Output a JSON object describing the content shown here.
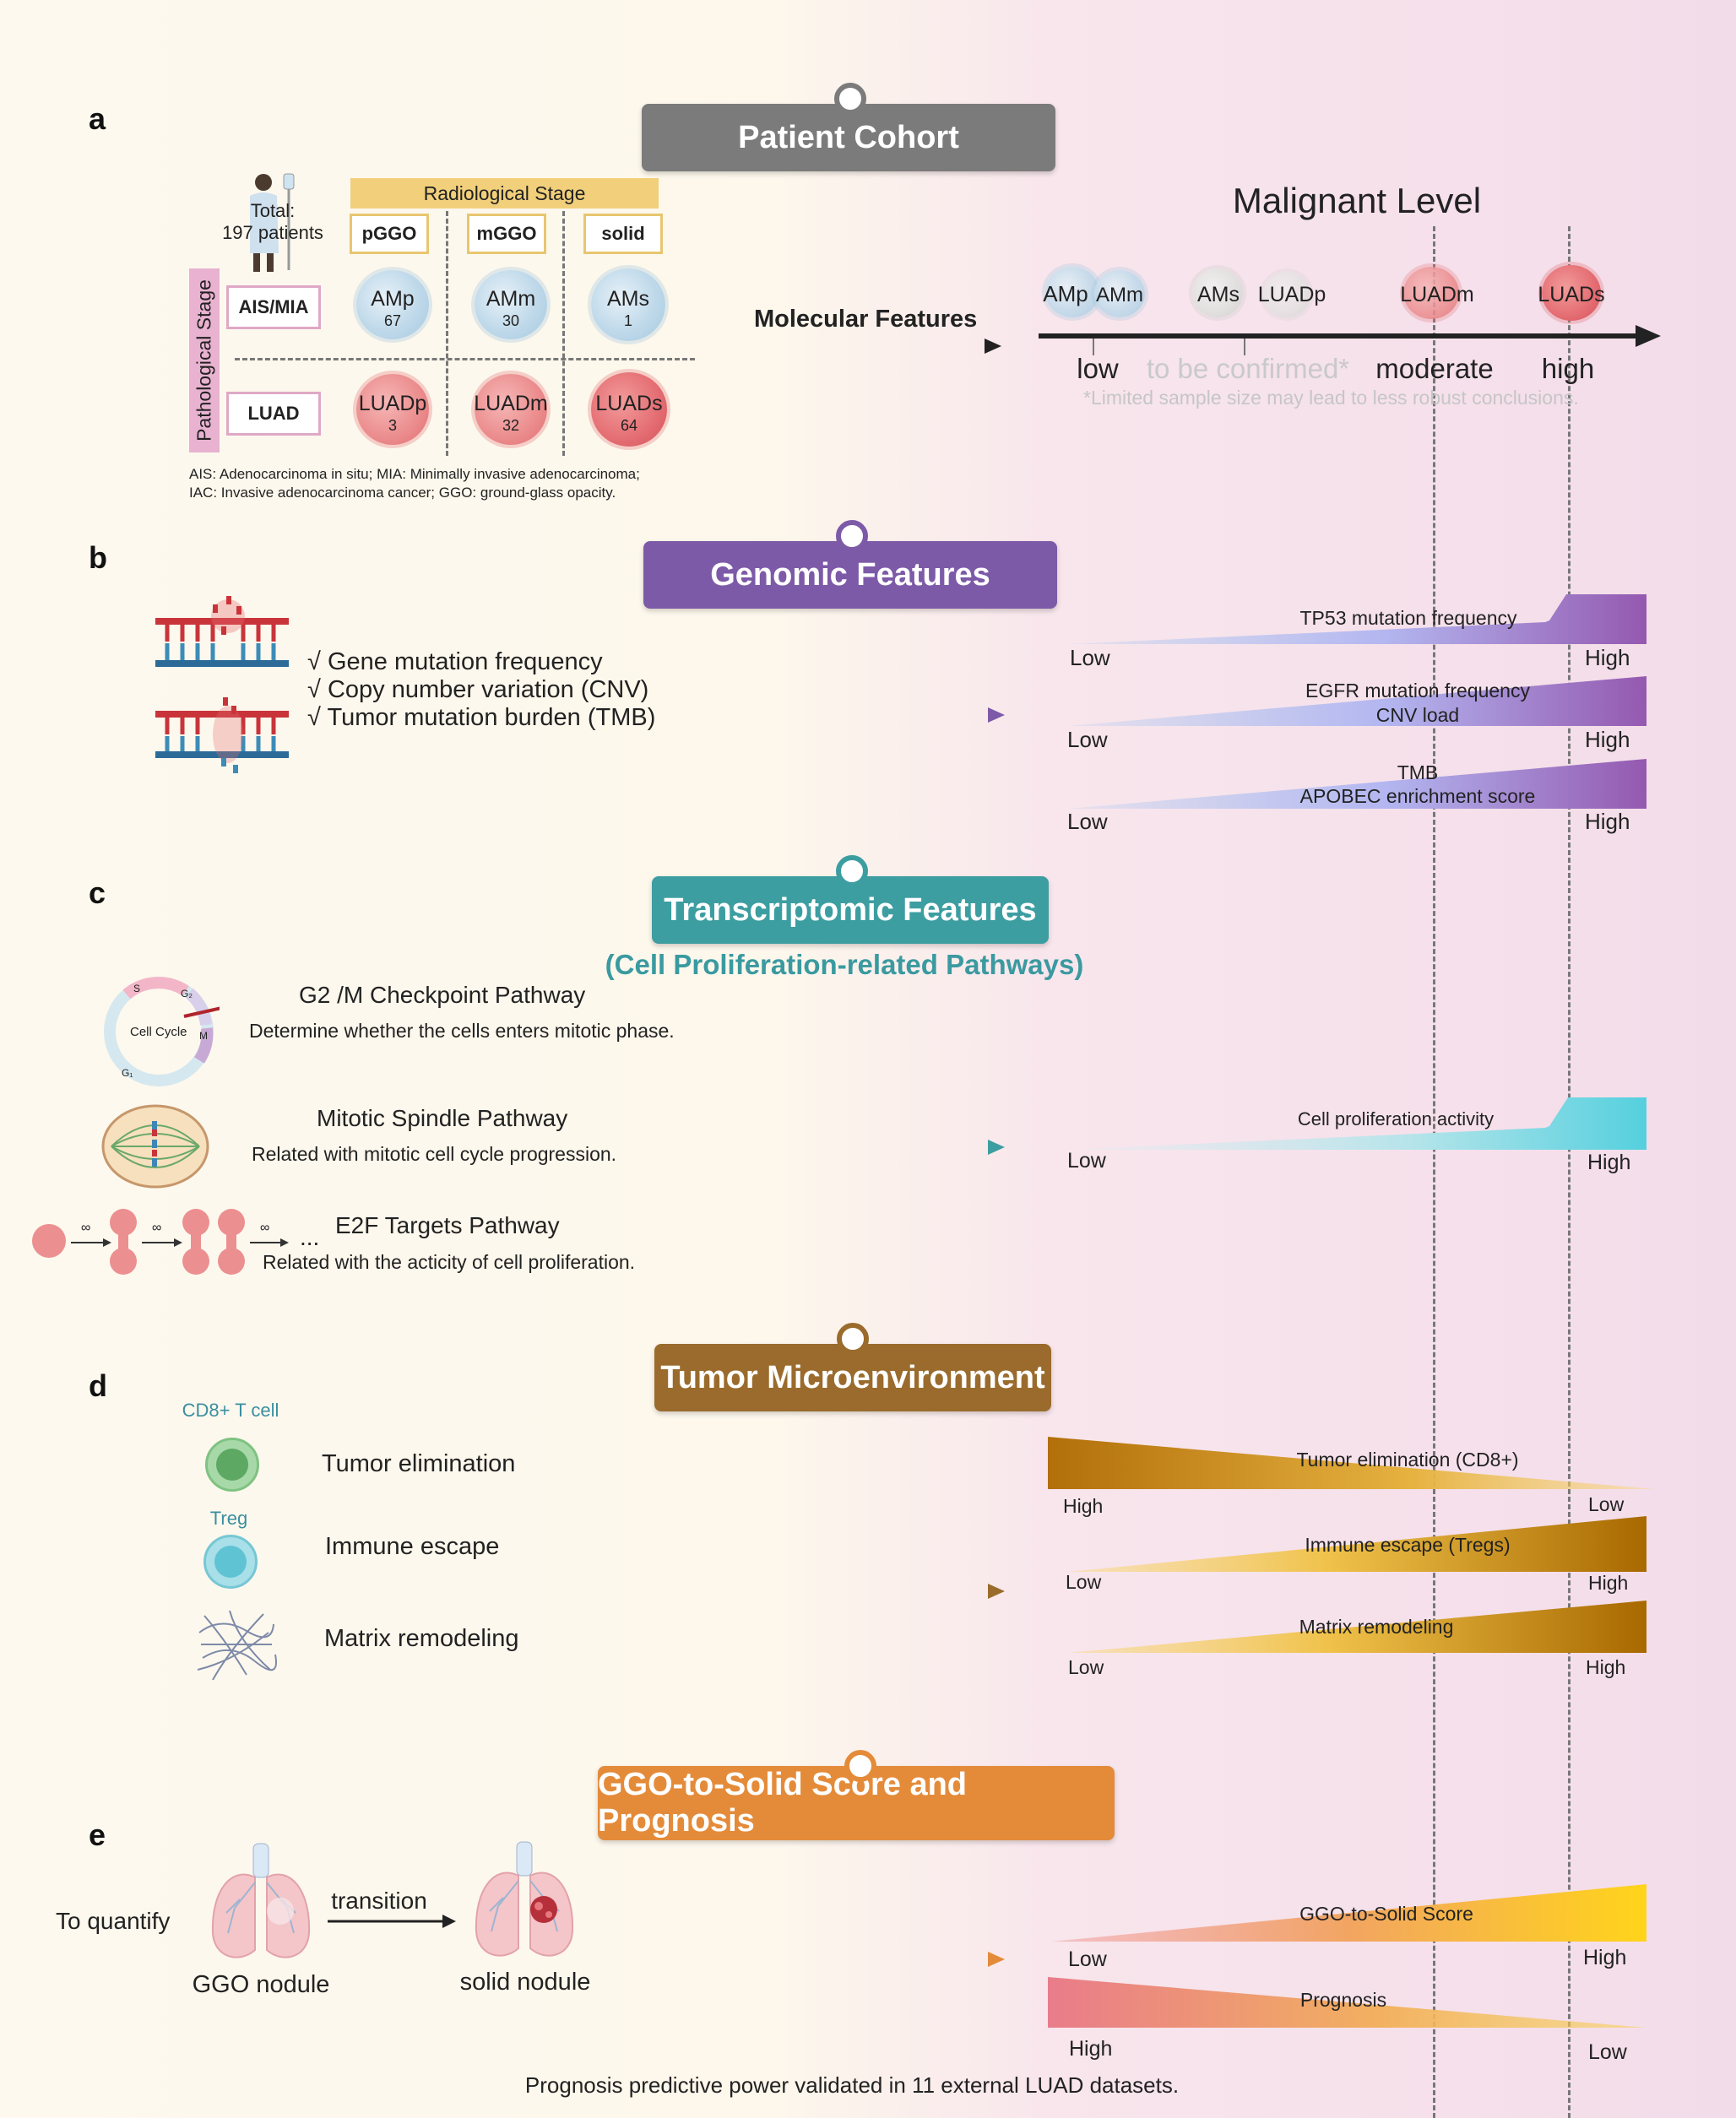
{
  "panel_labels": {
    "a": "a",
    "b": "b",
    "c": "c",
    "d": "d",
    "e": "e"
  },
  "panel_a": {
    "banner": "Patient Cohort",
    "total_label": "Total:",
    "total_value": "197  patients",
    "radiological_stage": "Radiological Stage",
    "columns": [
      "pGGO",
      "mGGO",
      "solid"
    ],
    "pathological_stage": "Pathological Stage",
    "rows": [
      "AIS/MIA",
      "LUAD"
    ],
    "groups": [
      {
        "name": "AMp",
        "n": "67"
      },
      {
        "name": "AMm",
        "n": "30"
      },
      {
        "name": "AMs",
        "n": "1"
      },
      {
        "name": "LUADp",
        "n": "3"
      },
      {
        "name": "LUADm",
        "n": "32"
      },
      {
        "name": "LUADs",
        "n": "64"
      }
    ],
    "footnote_1": "AIS: Adenocarcinoma in situ; MIA: Minimally invasive adenocarcinoma;",
    "footnote_2": "IAC: Invasive adenocarcinoma cancer; GGO: ground-glass opacity.",
    "arrow_label": "Molecular Features",
    "scale_title": "Malignant Level",
    "scale_groups": [
      "AMp",
      "AMm",
      "AMs",
      "LUADp",
      "LUADm",
      "LUADs"
    ],
    "scale_levels": [
      "low",
      "to be confirmed*",
      "moderate",
      "high"
    ],
    "scale_note": "*Limited sample size may lead to less robust conclusions."
  },
  "panel_b": {
    "banner": "Genomic Features",
    "items": [
      "√ Gene mutation frequency",
      "√ Copy number variation (CNV)",
      "√ Tumor mutation burden (TMB)"
    ],
    "bars": [
      {
        "label": "TP53 mutation frequency",
        "left": "Low",
        "right": "High"
      },
      {
        "label": "EGFR mutation frequency",
        "label2": "CNV load",
        "left": "Low",
        "right": "High"
      },
      {
        "label": "TMB",
        "label2": "APOBEC enrichment score",
        "left": "Low",
        "right": "High"
      }
    ]
  },
  "panel_c": {
    "banner": "Transcriptomic Features",
    "subtitle": "(Cell Proliferation-related  Pathways)",
    "cell_cycle_label": "Cell Cycle",
    "cycle_phases": [
      "S",
      "G₂",
      "M",
      "G₁"
    ],
    "pathways": [
      {
        "name": "G2 /M Checkpoint Pathway",
        "desc": "Determine whether the cells enters mitotic phase."
      },
      {
        "name": "Mitotic Spindle Pathway",
        "desc": "Related with mitotic cell cycle progression."
      },
      {
        "name": "E2F Targets Pathway",
        "desc": "Related with the acticity of cell proliferation."
      }
    ],
    "loop_symbol": "∞",
    "ellipsis": "...",
    "bar": {
      "label": "Cell proliferation activity",
      "left": "Low",
      "right": "High"
    }
  },
  "panel_d": {
    "banner": "Tumor Microenvironment",
    "cells": [
      {
        "cell": "CD8+ T cell",
        "role": "Tumor elimination"
      },
      {
        "cell": "Treg",
        "role": "Immune escape"
      },
      {
        "cell": "",
        "role": "Matrix remodeling"
      }
    ],
    "bars": [
      {
        "label": "Tumor elimination (CD8+)",
        "left": "High",
        "right": "Low",
        "trend": "decreasing"
      },
      {
        "label": "Immune escape (Tregs)",
        "left": "Low",
        "right": "High",
        "trend": "increasing"
      },
      {
        "label": "Matrix remodeling",
        "left": "Low",
        "right": "High",
        "trend": "increasing"
      }
    ]
  },
  "panel_e": {
    "banner": "GGO-to-Solid Score and Prognosis",
    "to_quantify": "To quantify",
    "transition": "transition",
    "ggo_nodule": "GGO nodule",
    "solid_nodule": "solid nodule",
    "bars": [
      {
        "label": "GGO-to-Solid Score",
        "left": "Low",
        "right": "High",
        "trend": "increasing"
      },
      {
        "label": "Prognosis",
        "left": "High",
        "right": "Low",
        "trend": "decreasing"
      }
    ],
    "footnote": "Prognosis predictive power validated in 11 external LUAD datasets."
  },
  "colors": {
    "cohort": "#7b7b7b",
    "genomic": "#7d5aa8",
    "transcriptomic": "#3d9ea1",
    "tme": "#9a6b2c",
    "prognosis": "#e48b3a",
    "teal_sub": "#3a9aa0"
  }
}
